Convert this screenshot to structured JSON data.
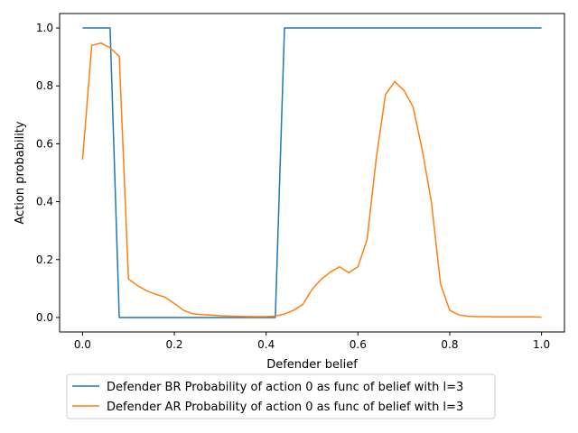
{
  "chart_data": {
    "type": "line",
    "xlabel": "Defender belief",
    "ylabel": "Action probability",
    "xlim": [
      -0.05,
      1.05
    ],
    "ylim": [
      -0.05,
      1.05
    ],
    "xticks": [
      "0.0",
      "0.2",
      "0.4",
      "0.6",
      "0.8",
      "1.0"
    ],
    "yticks": [
      "0.0",
      "0.2",
      "0.4",
      "0.6",
      "0.8",
      "1.0"
    ],
    "grid": false,
    "legend_position": "below",
    "series": [
      {
        "name": "Defender BR Probability of action 0 as func of belief with l=3",
        "color": "#1f77b4",
        "x": [
          0,
          0.02,
          0.04,
          0.06,
          0.08,
          0.1,
          0.2,
          0.3,
          0.4,
          0.42,
          0.44,
          0.5,
          0.6,
          0.7,
          0.8,
          0.9,
          1.0
        ],
        "y": [
          1.0,
          1.0,
          1.0,
          1.0,
          0.0,
          0.0,
          0.0,
          0.0,
          0.0,
          0.0,
          1.0,
          1.0,
          1.0,
          1.0,
          1.0,
          1.0,
          1.0
        ]
      },
      {
        "name": "Defender AR Probability of action 0 as func of belief with l=3",
        "color": "#ff7f0e",
        "x": [
          0,
          0.02,
          0.04,
          0.06,
          0.08,
          0.1,
          0.12,
          0.14,
          0.16,
          0.18,
          0.2,
          0.22,
          0.24,
          0.26,
          0.28,
          0.3,
          0.32,
          0.34,
          0.36,
          0.38,
          0.4,
          0.42,
          0.44,
          0.46,
          0.48,
          0.5,
          0.52,
          0.54,
          0.56,
          0.58,
          0.6,
          0.62,
          0.64,
          0.66,
          0.68,
          0.7,
          0.72,
          0.74,
          0.76,
          0.78,
          0.8,
          0.82,
          0.84,
          0.86,
          0.88,
          0.9,
          0.92,
          0.94,
          0.96,
          0.98,
          1.0
        ],
        "y": [
          0.545,
          0.94,
          0.948,
          0.932,
          0.902,
          0.133,
          0.11,
          0.092,
          0.08,
          0.07,
          0.048,
          0.025,
          0.013,
          0.01,
          0.008,
          0.006,
          0.005,
          0.004,
          0.003,
          0.003,
          0.003,
          0.005,
          0.012,
          0.025,
          0.045,
          0.097,
          0.132,
          0.157,
          0.175,
          0.155,
          0.175,
          0.27,
          0.55,
          0.77,
          0.815,
          0.785,
          0.728,
          0.58,
          0.4,
          0.115,
          0.025,
          0.009,
          0.004,
          0.003,
          0.003,
          0.002,
          0.002,
          0.002,
          0.002,
          0.002,
          0.001
        ]
      }
    ]
  }
}
